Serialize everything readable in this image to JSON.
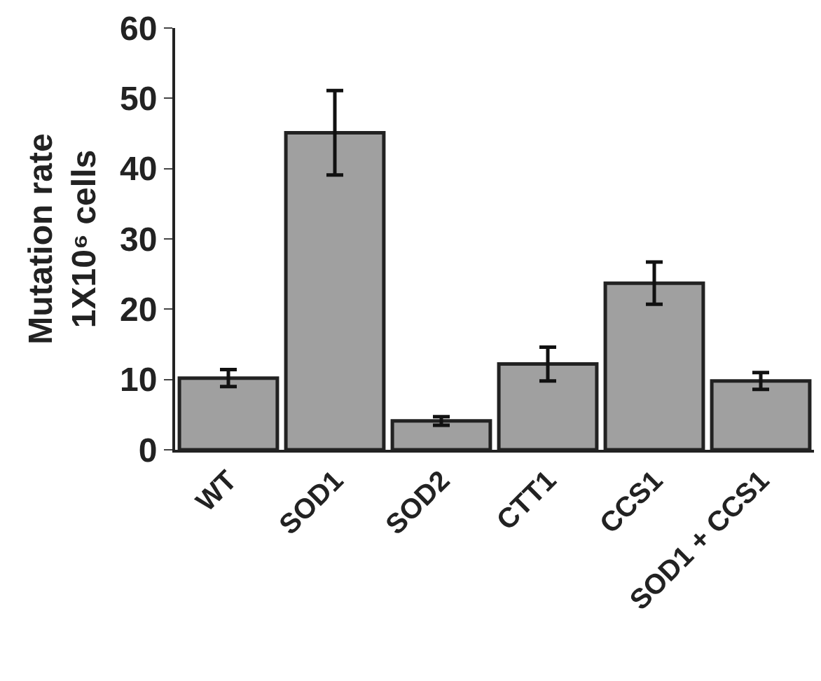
{
  "chart_data": {
    "type": "bar",
    "ylabel": "Mutation rate\n1X10⁶ cells",
    "categories": [
      "WT",
      "SOD1",
      "SOD2",
      "CTT1",
      "CCS1",
      "SOD1 + CCS1"
    ],
    "values": [
      10.2,
      45.1,
      4.1,
      12.2,
      23.7,
      9.8
    ],
    "errors": [
      1.2,
      6,
      0.6,
      2.4,
      3,
      1.2
    ],
    "color": "#a0a0a0",
    "ylim": [
      0,
      60
    ],
    "yticks": [
      0,
      10,
      20,
      30,
      40,
      50,
      60
    ]
  }
}
